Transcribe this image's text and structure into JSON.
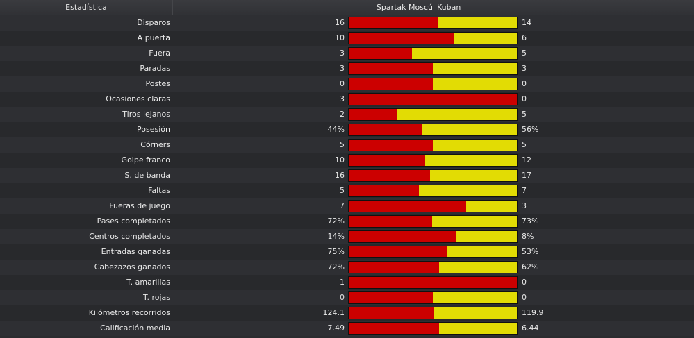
{
  "header": {
    "stat_label": "Estadística",
    "home_team": "Spartak Moscú",
    "away_team": "Kuban"
  },
  "colors": {
    "home_bar": "#cc0000",
    "away_bar": "#e2dc04",
    "background": "#2b2c2f"
  },
  "stats": [
    {
      "label": "Disparos",
      "home": "16",
      "away": "14",
      "home_share": 0.533
    },
    {
      "label": "A puerta",
      "home": "10",
      "away": "6",
      "home_share": 0.625
    },
    {
      "label": "Fuera",
      "home": "3",
      "away": "5",
      "home_share": 0.375
    },
    {
      "label": "Paradas",
      "home": "3",
      "away": "3",
      "home_share": 0.5
    },
    {
      "label": "Postes",
      "home": "0",
      "away": "0",
      "home_share": 0.5
    },
    {
      "label": "Ocasiones claras",
      "home": "3",
      "away": "0",
      "home_share": 1.0
    },
    {
      "label": "Tiros lejanos",
      "home": "2",
      "away": "5",
      "home_share": 0.286
    },
    {
      "label": "Posesión",
      "home": "44%",
      "away": "56%",
      "home_share": 0.44
    },
    {
      "label": "Córners",
      "home": "5",
      "away": "5",
      "home_share": 0.5
    },
    {
      "label": "Golpe franco",
      "home": "10",
      "away": "12",
      "home_share": 0.455
    },
    {
      "label": "S. de banda",
      "home": "16",
      "away": "17",
      "home_share": 0.485
    },
    {
      "label": "Faltas",
      "home": "5",
      "away": "7",
      "home_share": 0.417
    },
    {
      "label": "Fueras de juego",
      "home": "7",
      "away": "3",
      "home_share": 0.7
    },
    {
      "label": "Pases completados",
      "home": "72%",
      "away": "73%",
      "home_share": 0.497
    },
    {
      "label": "Centros completados",
      "home": "14%",
      "away": "8%",
      "home_share": 0.636
    },
    {
      "label": "Entradas ganadas",
      "home": "75%",
      "away": "53%",
      "home_share": 0.586
    },
    {
      "label": "Cabezazos ganados",
      "home": "72%",
      "away": "62%",
      "home_share": 0.537
    },
    {
      "label": "T. amarillas",
      "home": "1",
      "away": "0",
      "home_share": 1.0
    },
    {
      "label": "T. rojas",
      "home": "0",
      "away": "0",
      "home_share": 0.5
    },
    {
      "label": "Kilómetros recorridos",
      "home": "124.1",
      "away": "119.9",
      "home_share": 0.509
    },
    {
      "label": "Calificación media",
      "home": "7.49",
      "away": "6.44",
      "home_share": 0.538
    }
  ]
}
